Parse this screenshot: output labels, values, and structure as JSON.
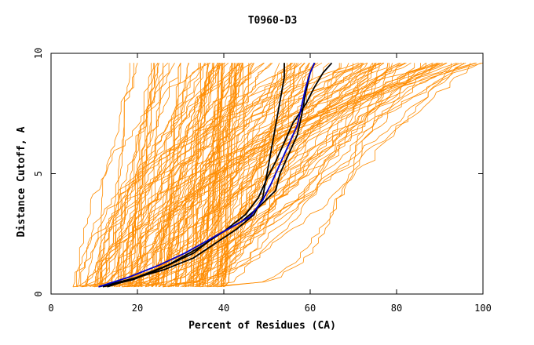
{
  "chart_data": {
    "type": "line",
    "title": "T0960-D3",
    "xlabel": "Percent of Residues (CA)",
    "ylabel": "Distance Cutoff, A",
    "xlim": [
      0,
      100
    ],
    "ylim": [
      0,
      10
    ],
    "x_ticks": [
      0,
      20,
      40,
      60,
      80,
      100
    ],
    "y_ticks": [
      0,
      5,
      10
    ],
    "grid": false,
    "legend": "none",
    "colors": {
      "background_curves": "#ff8c00",
      "highlight_black": "#000000",
      "highlight_blue": "#0000cd"
    },
    "background_curve_count": 150,
    "background_x_range_at_0_3": [
      5,
      40
    ],
    "background_x_range_at_9_5": [
      17,
      100
    ],
    "series": [
      {
        "color": "#000000",
        "points": [
          [
            11,
            0.3
          ],
          [
            18,
            0.6
          ],
          [
            26,
            1.0
          ],
          [
            33,
            1.5
          ],
          [
            38,
            2.1
          ],
          [
            43,
            2.7
          ],
          [
            47,
            3.3
          ],
          [
            49,
            4.0
          ],
          [
            50,
            5.0
          ],
          [
            51,
            6.0
          ],
          [
            52,
            7.0
          ],
          [
            53,
            8.0
          ],
          [
            54,
            9.0
          ],
          [
            54,
            9.6
          ]
        ]
      },
      {
        "color": "#000000",
        "points": [
          [
            12,
            0.3
          ],
          [
            19,
            0.6
          ],
          [
            26,
            1.1
          ],
          [
            33,
            1.7
          ],
          [
            38,
            2.4
          ],
          [
            44,
            3.0
          ],
          [
            48,
            3.6
          ],
          [
            52,
            4.3
          ],
          [
            53,
            5.0
          ],
          [
            55,
            5.8
          ],
          [
            57,
            6.6
          ],
          [
            58,
            7.4
          ],
          [
            59,
            8.4
          ],
          [
            60,
            9.2
          ],
          [
            61,
            9.6
          ]
        ]
      },
      {
        "color": "#000000",
        "points": [
          [
            13,
            0.3
          ],
          [
            20,
            0.7
          ],
          [
            27,
            1.2
          ],
          [
            34,
            1.9
          ],
          [
            40,
            2.6
          ],
          [
            45,
            3.3
          ],
          [
            48,
            4.0
          ],
          [
            50,
            4.8
          ],
          [
            52,
            5.5
          ],
          [
            54,
            6.3
          ],
          [
            56,
            7.1
          ],
          [
            59,
            7.9
          ],
          [
            61,
            8.6
          ],
          [
            63,
            9.2
          ],
          [
            65,
            9.6
          ]
        ]
      },
      {
        "color": "#0000cd",
        "points": [
          [
            11,
            0.3
          ],
          [
            18,
            0.7
          ],
          [
            25,
            1.2
          ],
          [
            31,
            1.7
          ],
          [
            36,
            2.2
          ],
          [
            41,
            2.7
          ],
          [
            46,
            3.2
          ],
          [
            49,
            3.9
          ],
          [
            51,
            4.6
          ],
          [
            53,
            5.4
          ],
          [
            55,
            6.2
          ],
          [
            57,
            7.0
          ],
          [
            58,
            7.8
          ],
          [
            59,
            8.6
          ],
          [
            60,
            9.2
          ],
          [
            61,
            9.6
          ]
        ]
      }
    ]
  }
}
